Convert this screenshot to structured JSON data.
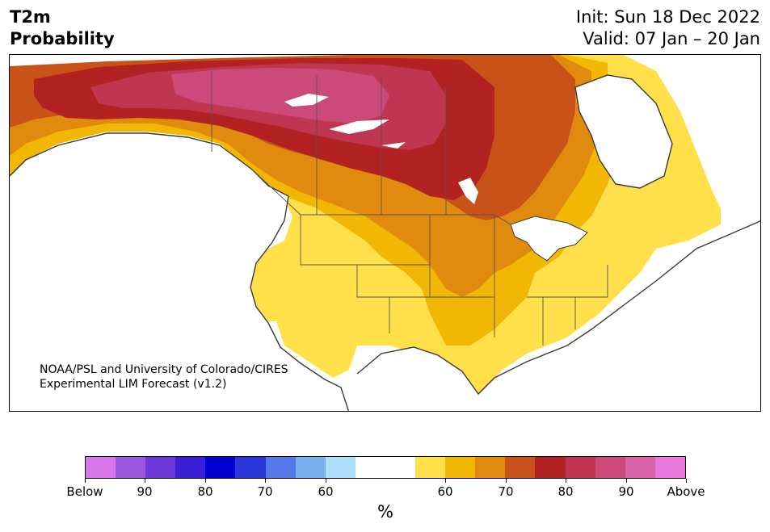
{
  "header": {
    "variable": "T2m",
    "product": "Probability",
    "init": "Init: Sun 18 Dec 2022",
    "valid": "Valid: 07 Jan – 20 Jan"
  },
  "credit": {
    "line1": "NOAA/PSL and University of Colorado/CIRES",
    "line2": "Experimental LIM Forecast (v1.2)"
  },
  "colorbar": {
    "unit": "%",
    "colors": [
      "#d875ea",
      "#9b57e0",
      "#6d37d8",
      "#3a1ed6",
      "#0000d0",
      "#2836da",
      "#5478e6",
      "#78b0f0",
      "#aee0fc",
      "#ffffff",
      "#ffffff",
      "#ffe04a",
      "#f2b705",
      "#e08a0e",
      "#c95218",
      "#b22222",
      "#c03550",
      "#cc4a7a",
      "#d962a8",
      "#e878dc"
    ],
    "tick_labels": [
      "Below",
      "90",
      "80",
      "70",
      "60",
      "60",
      "70",
      "80",
      "90",
      "Above"
    ]
  },
  "map_colors": {
    "coast": "#3a3a3a",
    "border": "#555555"
  }
}
